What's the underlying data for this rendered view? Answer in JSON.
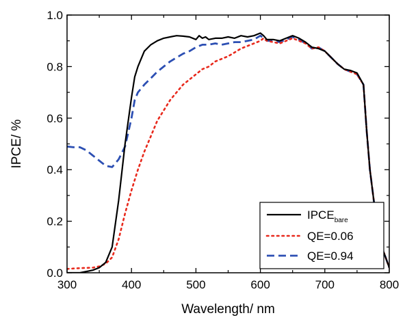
{
  "chart_data": {
    "type": "line",
    "xlabel": "Wavelength/ nm",
    "ylabel": "IPCE/ %",
    "xlim": [
      300,
      800
    ],
    "ylim": [
      0.0,
      1.0
    ],
    "xticks": [
      300,
      400,
      500,
      600,
      700,
      800
    ],
    "yticks": [
      0.0,
      0.2,
      0.4,
      0.6,
      0.8,
      1.0
    ],
    "xtick_labels": [
      "300",
      "400",
      "500",
      "600",
      "700",
      "800"
    ],
    "ytick_labels": [
      "0.0",
      "0.2",
      "0.4",
      "0.6",
      "0.8",
      "1.0"
    ],
    "grid": false,
    "legend_position": "bottom-right",
    "series": [
      {
        "name": "IPCE",
        "name_subscript": "bare",
        "color": "#000000",
        "style": "solid",
        "x": [
          300,
          320,
          340,
          350,
          360,
          370,
          380,
          390,
          400,
          405,
          410,
          415,
          420,
          430,
          440,
          450,
          460,
          470,
          480,
          490,
          500,
          505,
          510,
          515,
          520,
          530,
          540,
          550,
          560,
          570,
          580,
          590,
          600,
          605,
          610,
          620,
          630,
          640,
          650,
          660,
          670,
          680,
          690,
          700,
          710,
          720,
          730,
          740,
          750,
          760,
          765,
          770,
          780,
          790,
          800
        ],
        "y": [
          0.0,
          0.0,
          0.01,
          0.02,
          0.04,
          0.1,
          0.28,
          0.5,
          0.68,
          0.76,
          0.8,
          0.83,
          0.86,
          0.885,
          0.9,
          0.91,
          0.915,
          0.92,
          0.918,
          0.915,
          0.905,
          0.92,
          0.91,
          0.915,
          0.905,
          0.91,
          0.91,
          0.915,
          0.91,
          0.92,
          0.915,
          0.92,
          0.93,
          0.92,
          0.905,
          0.905,
          0.9,
          0.91,
          0.92,
          0.91,
          0.895,
          0.875,
          0.87,
          0.86,
          0.835,
          0.81,
          0.79,
          0.785,
          0.775,
          0.73,
          0.55,
          0.4,
          0.2,
          0.09,
          0.02
        ]
      },
      {
        "name": "QE=0.06",
        "color": "#e8291c",
        "style": "dotted",
        "x": [
          300,
          320,
          340,
          350,
          360,
          370,
          380,
          390,
          400,
          410,
          420,
          430,
          440,
          450,
          460,
          470,
          480,
          490,
          500,
          510,
          520,
          530,
          540,
          550,
          560,
          570,
          580,
          590,
          600,
          605,
          610,
          620,
          630,
          640,
          650,
          660,
          670,
          680,
          690,
          700,
          710,
          720,
          730,
          740,
          750,
          760,
          765,
          770,
          780,
          790,
          800
        ],
        "y": [
          0.015,
          0.018,
          0.02,
          0.025,
          0.035,
          0.06,
          0.13,
          0.23,
          0.32,
          0.4,
          0.47,
          0.53,
          0.59,
          0.63,
          0.67,
          0.7,
          0.73,
          0.75,
          0.77,
          0.79,
          0.8,
          0.82,
          0.83,
          0.84,
          0.855,
          0.87,
          0.88,
          0.89,
          0.9,
          0.91,
          0.9,
          0.895,
          0.89,
          0.9,
          0.91,
          0.9,
          0.89,
          0.87,
          0.875,
          0.86,
          0.835,
          0.81,
          0.79,
          0.78,
          0.77,
          0.73,
          0.55,
          0.4,
          0.2,
          0.09,
          0.02
        ]
      },
      {
        "name": "QE=0.94",
        "color": "#2c4fb3",
        "style": "dashed",
        "x": [
          300,
          310,
          320,
          330,
          340,
          350,
          360,
          370,
          380,
          390,
          400,
          405,
          410,
          420,
          430,
          440,
          450,
          460,
          470,
          480,
          490,
          500,
          510,
          520,
          530,
          540,
          550,
          560,
          570,
          580,
          590,
          600,
          605,
          610,
          620,
          630,
          640,
          650,
          660,
          670,
          680,
          690,
          700,
          710,
          720,
          730,
          740,
          750,
          760,
          765,
          770,
          780,
          790,
          800
        ],
        "y": [
          0.49,
          0.487,
          0.487,
          0.475,
          0.455,
          0.435,
          0.415,
          0.41,
          0.44,
          0.49,
          0.6,
          0.67,
          0.7,
          0.73,
          0.755,
          0.78,
          0.8,
          0.82,
          0.835,
          0.85,
          0.86,
          0.875,
          0.885,
          0.885,
          0.89,
          0.885,
          0.89,
          0.895,
          0.895,
          0.9,
          0.905,
          0.92,
          0.91,
          0.9,
          0.9,
          0.895,
          0.905,
          0.915,
          0.905,
          0.89,
          0.87,
          0.875,
          0.86,
          0.835,
          0.81,
          0.79,
          0.78,
          0.77,
          0.73,
          0.55,
          0.4,
          0.2,
          0.09,
          0.02
        ]
      }
    ]
  }
}
